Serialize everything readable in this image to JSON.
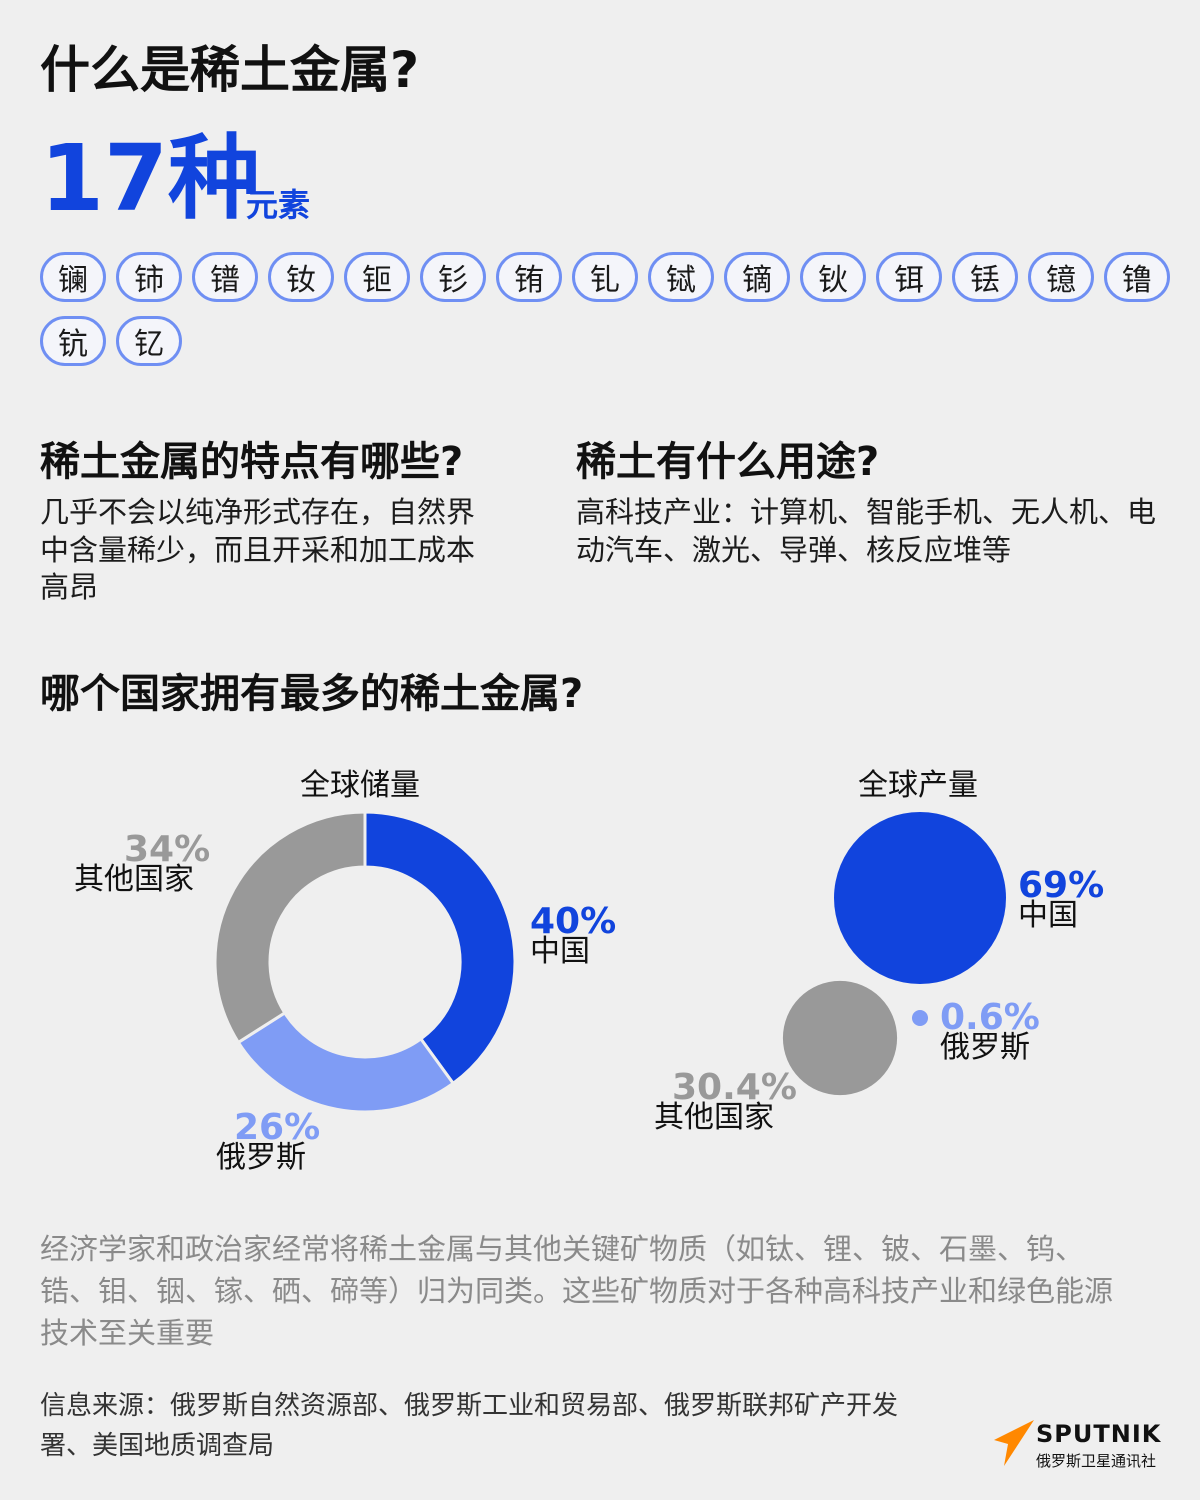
{
  "title": "什么是稀土金属?",
  "count": {
    "number": "17种",
    "unit": "元素"
  },
  "elements": [
    "镧",
    "铈",
    "镨",
    "钕",
    "钷",
    "钐",
    "铕",
    "钆",
    "铽",
    "镝",
    "钬",
    "铒",
    "铥",
    "镱",
    "镥",
    "钪",
    "钇"
  ],
  "sections": {
    "features": {
      "heading": "稀土金属的特点有哪些?",
      "text": "几乎不会以纯净形式存在，自然界中含量稀少，而且开采和加工成本高昂"
    },
    "uses": {
      "heading": "稀土有什么用途?",
      "text": "高科技产业：计算机、智能手机、无人机、电动汽车、激光、导弹、核反应堆等"
    },
    "country": {
      "heading": "哪个国家拥有最多的稀土金属?"
    }
  },
  "chart_data": [
    {
      "type": "pie",
      "title": "全球储量",
      "style": "donut",
      "slices": [
        {
          "label": "中国",
          "value": 40,
          "display": "40%",
          "color": "#1144dd"
        },
        {
          "label": "俄罗斯",
          "value": 26,
          "display": "26%",
          "color": "#7f9cf5"
        },
        {
          "label": "其他国家",
          "value": 34,
          "display": "34%",
          "color": "#999999"
        }
      ]
    },
    {
      "type": "bubble",
      "title": "全球产量",
      "bubbles": [
        {
          "label": "中国",
          "value": 69,
          "display": "69%",
          "color": "#1144dd"
        },
        {
          "label": "俄罗斯",
          "value": 0.6,
          "display": "0.6%",
          "color": "#7f9cf5"
        },
        {
          "label": "其他国家",
          "value": 30.4,
          "display": "30.4%",
          "color": "#999999"
        }
      ]
    }
  ],
  "footnote": "经济学家和政治家经常将稀土金属与其他关键矿物质（如钛、锂、铍、石墨、钨、锆、钼、铟、镓、硒、碲等）归为同类。这些矿物质对于各种高科技产业和绿色能源技术至关重要",
  "source": "信息来源：俄罗斯自然资源部、俄罗斯工业和贸易部、俄罗斯联邦矿产开发署、美国地质调查局",
  "brand": {
    "name": "SPUTNIK",
    "tagline": "俄罗斯卫星通讯社",
    "color": "#ff8800"
  }
}
